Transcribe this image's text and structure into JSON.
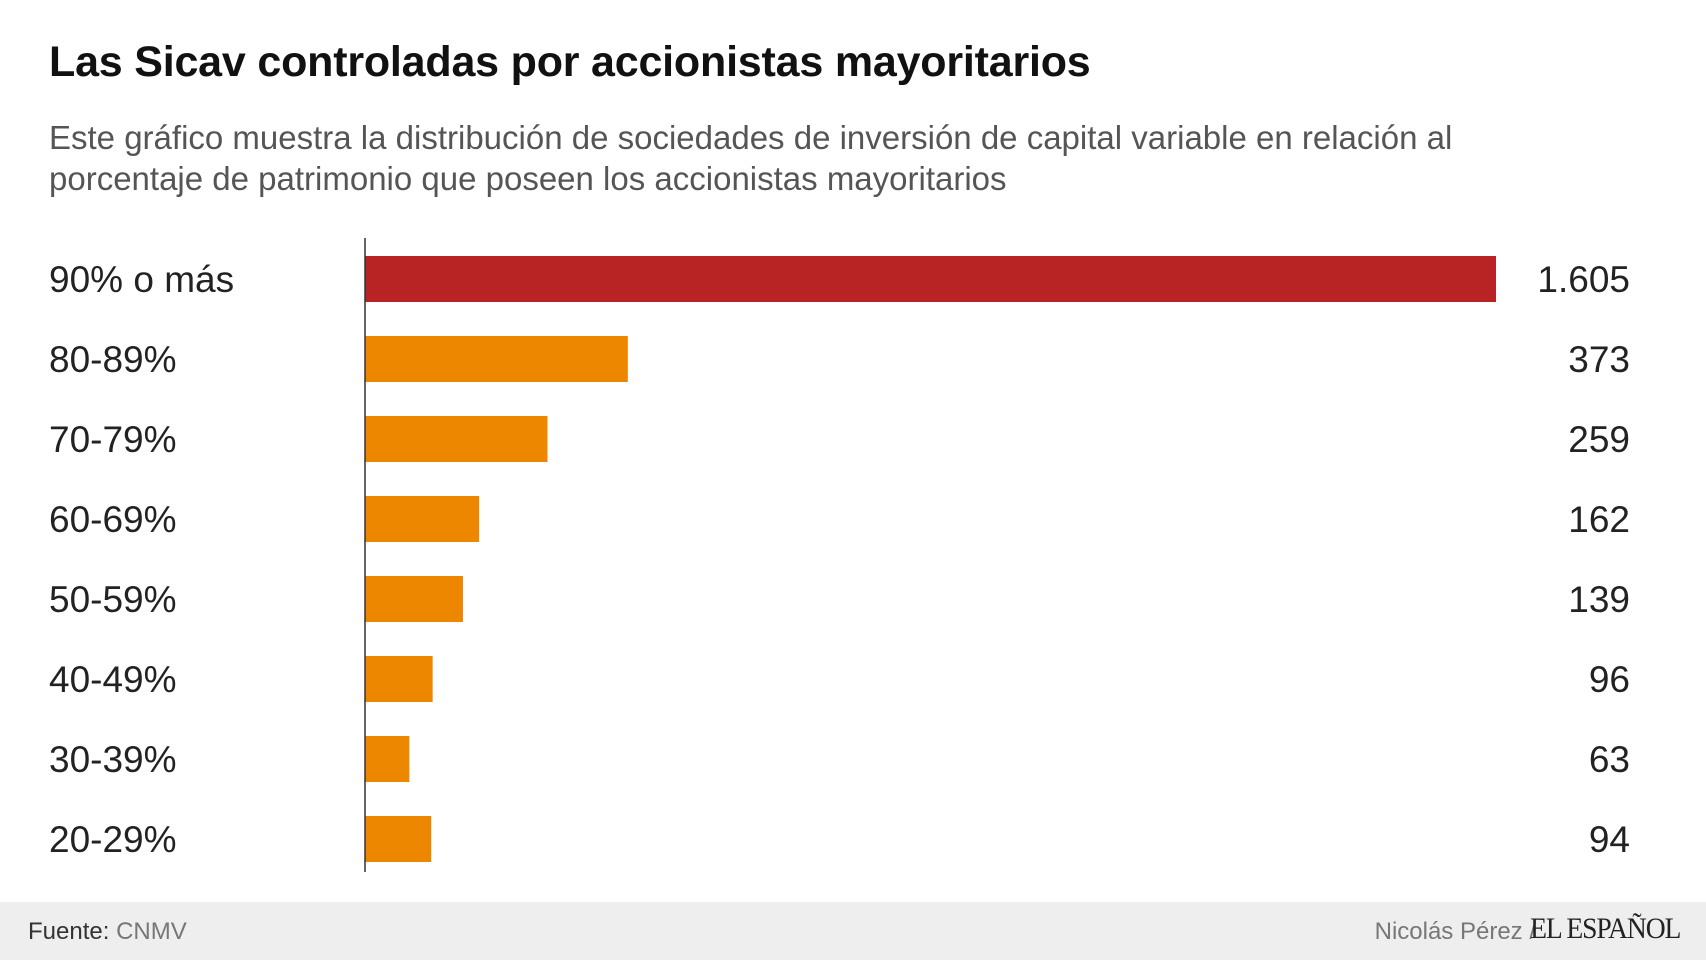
{
  "title": "Las Sicav controladas por accionistas mayoritarios",
  "subtitle": "Este gráfico muestra la distribución de sociedades de inversión de capital variable en relación al porcentaje de patrimonio que poseen los accionistas mayoritarios",
  "colors": {
    "highlight": "#b82323",
    "bar": "#ee8700",
    "axis": "#333333",
    "label": "#222222",
    "footer_bg": "#eeeeee"
  },
  "chart_data": {
    "type": "bar",
    "orientation": "horizontal",
    "title": "Las Sicav controladas por accionistas mayoritarios",
    "xlabel": "",
    "ylabel": "",
    "xlim": [
      0,
      1605
    ],
    "grid": false,
    "categories": [
      "90% o más",
      "80-89%",
      "70-79%",
      "60-69%",
      "50-59%",
      "40-49%",
      "30-39%",
      "20-29%"
    ],
    "values": [
      1605,
      373,
      259,
      162,
      139,
      96,
      63,
      94
    ],
    "value_labels": [
      "1.605",
      "373",
      "259",
      "162",
      "139",
      "96",
      "63",
      "94"
    ],
    "highlight_index": 0
  },
  "footer": {
    "source_label": "Fuente:",
    "source_value": "CNMV",
    "author": "Nicolás Pérez /",
    "logo": "EL ESPAÑOL"
  }
}
